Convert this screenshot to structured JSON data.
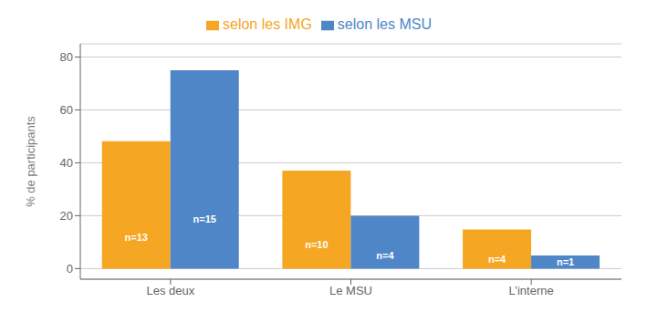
{
  "chart_data": {
    "type": "bar",
    "categories": [
      "Les deux",
      "Le MSU",
      "L’interne"
    ],
    "series": [
      {
        "name": "selon les IMG",
        "color": "#F5A623",
        "values": [
          48.148,
          37.037,
          14.815
        ],
        "labels": [
          "n=13",
          "n=10",
          "n=4"
        ]
      },
      {
        "name": "selon les MSU",
        "color": "#4E86C8",
        "values": [
          75.0,
          20.0,
          5.0
        ],
        "labels": [
          "n=15",
          "n=4",
          "n=1"
        ]
      }
    ],
    "ylabel": "% de participants",
    "ylim": [
      -4,
      85
    ],
    "yticks": [
      0,
      20,
      40,
      60,
      80
    ],
    "grid": true,
    "legend": "top"
  }
}
